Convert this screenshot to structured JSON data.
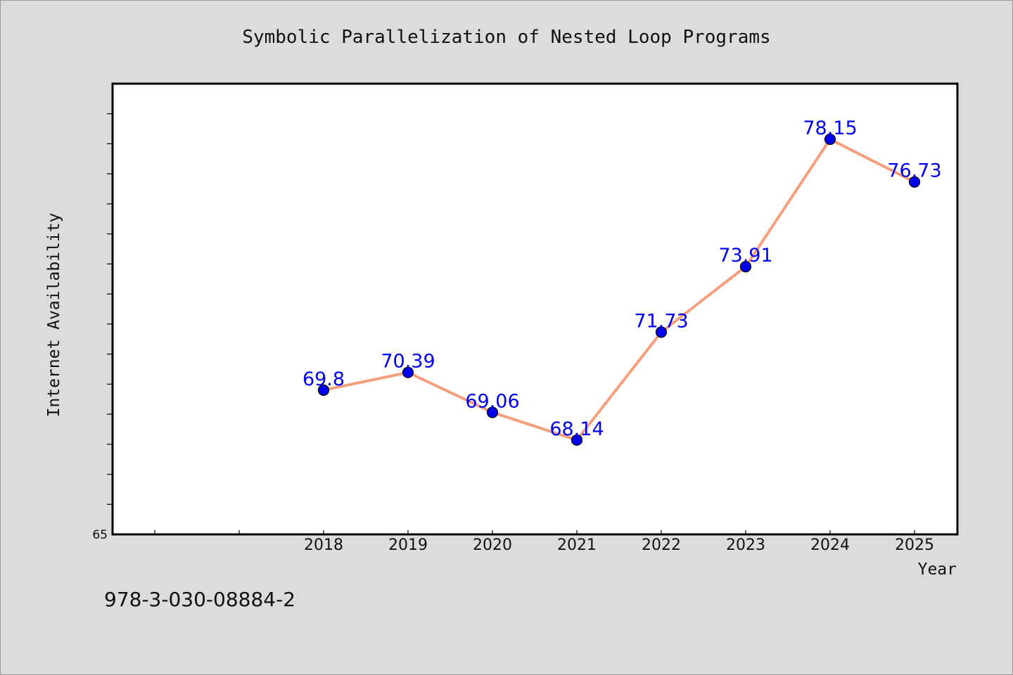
{
  "chart_data": {
    "type": "line",
    "title": "Symbolic Parallelization of Nested Loop Programs",
    "xlabel": "Year",
    "ylabel": "Internet Availability",
    "categories": [
      "2018",
      "2019",
      "2020",
      "2021",
      "2022",
      "2023",
      "2024",
      "2025"
    ],
    "series": [
      {
        "values": [
          69.8,
          70.39,
          69.06,
          68.14,
          71.73,
          73.91,
          78.15,
          76.73
        ],
        "labels": [
          "69.8",
          "70.39",
          "69.06",
          "68.14",
          "71.73",
          "73.91",
          "78.15",
          "76.73"
        ]
      }
    ],
    "ylim": [
      65,
      80
    ],
    "y_min_label": "65",
    "grid": false,
    "legend": "none",
    "colors": {
      "line": "#f4a07f",
      "marker": "#0000ee",
      "data_label": "#0000ee",
      "plot_background": "#ffffff",
      "page_background": "#dcdcdc"
    }
  },
  "footer": {
    "code": "978-3-030-08884-2"
  }
}
